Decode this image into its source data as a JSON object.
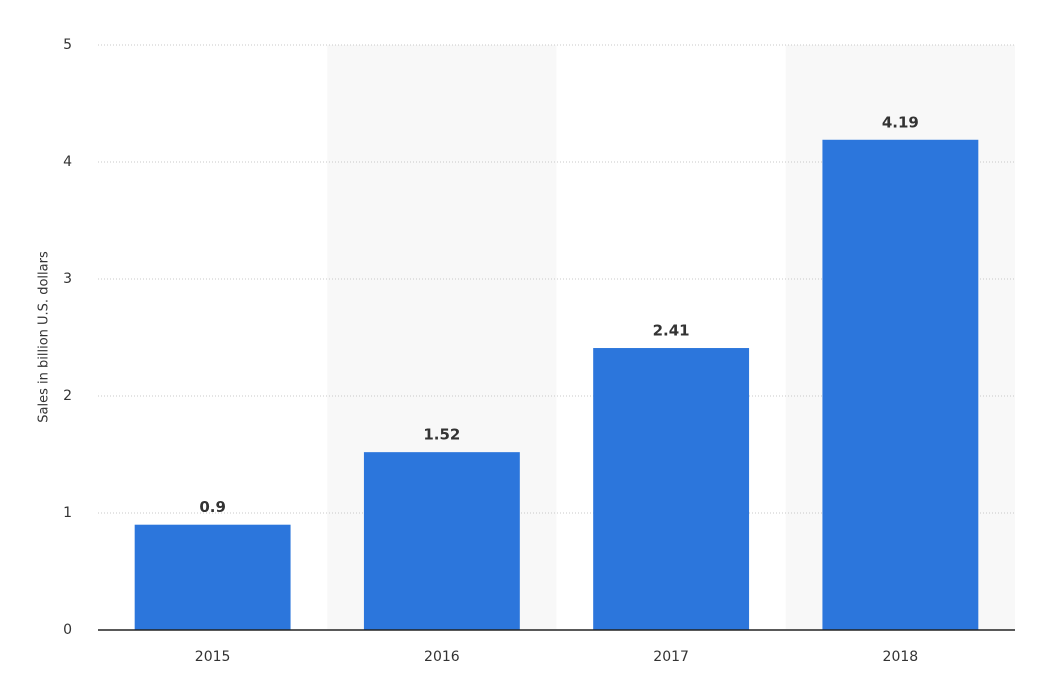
{
  "chart_data": {
    "type": "bar",
    "y_label": "Sales in billion U.S. dollars",
    "categories": [
      "2015",
      "2016",
      "2017",
      "2018"
    ],
    "values": [
      0.9,
      1.52,
      2.41,
      4.19
    ],
    "color": "#2c76dc",
    "ylim": [
      0,
      5
    ],
    "yticks": [
      0,
      1,
      2,
      3,
      4,
      5
    ],
    "grid": true
  }
}
